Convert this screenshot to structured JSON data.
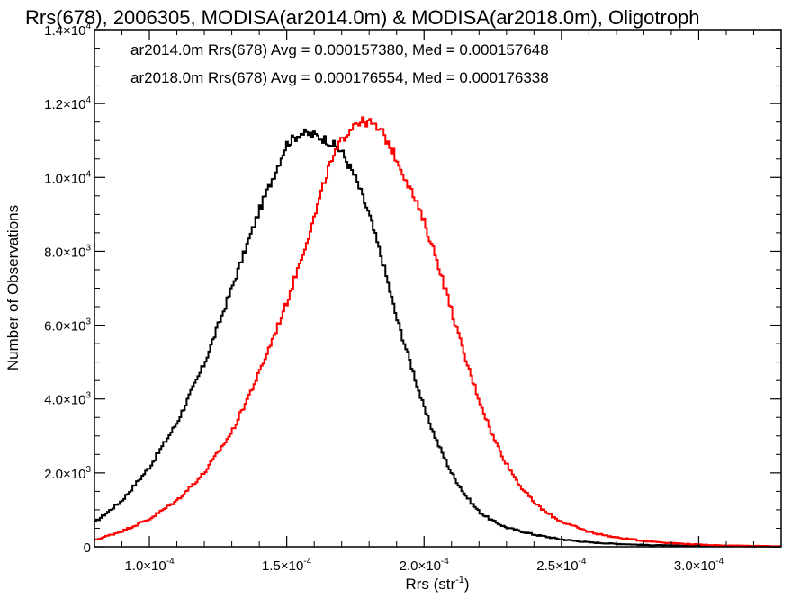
{
  "chart_data": {
    "type": "line",
    "title": "Rrs(678), 2006305, MODISA(ar2014.0m) & MODISA(ar2018.0m), Oligotroph",
    "xlabel_main": "Rrs (str",
    "xlabel_sup": "-1",
    "xlabel_end": ")",
    "ylabel": "Number of Observations",
    "xlim": [
      8e-05,
      0.00033
    ],
    "ylim": [
      0,
      14000
    ],
    "xticks": [
      {
        "value": 0.0001,
        "mant": "1.0×10",
        "exp": "-4"
      },
      {
        "value": 0.00015,
        "mant": "1.5×10",
        "exp": "-4"
      },
      {
        "value": 0.0002,
        "mant": "2.0×10",
        "exp": "-4"
      },
      {
        "value": 0.00025,
        "mant": "2.5×10",
        "exp": "-4"
      },
      {
        "value": 0.0003,
        "mant": "3.0×10",
        "exp": "-4"
      }
    ],
    "yticks": [
      {
        "value": 0,
        "mant": "0",
        "exp": ""
      },
      {
        "value": 2000,
        "mant": "2.0×10",
        "exp": "3"
      },
      {
        "value": 4000,
        "mant": "4.0×10",
        "exp": "3"
      },
      {
        "value": 6000,
        "mant": "6.0×10",
        "exp": "3"
      },
      {
        "value": 8000,
        "mant": "8.0×10",
        "exp": "3"
      },
      {
        "value": 10000,
        "mant": "1.0×10",
        "exp": "4"
      },
      {
        "value": 12000,
        "mant": "1.2×10",
        "exp": "4"
      },
      {
        "value": 14000,
        "mant": "1.4×10",
        "exp": "4"
      }
    ],
    "series": [
      {
        "label": "ar2014.0m Rrs(678) Avg = 0.000157380, Med = 0.000157648",
        "color": "#000000",
        "points": [
          [
            8e-05,
            650
          ],
          [
            9e-05,
            1250
          ],
          [
            0.0001,
            2150
          ],
          [
            0.00011,
            3350
          ],
          [
            0.00012,
            4950
          ],
          [
            0.00013,
            7000
          ],
          [
            0.00014,
            9100
          ],
          [
            0.000145,
            10000
          ],
          [
            0.00015,
            10900
          ],
          [
            0.000155,
            11200
          ],
          [
            0.00016,
            11150
          ],
          [
            0.000165,
            11000
          ],
          [
            0.00017,
            10700
          ],
          [
            0.000175,
            10000
          ],
          [
            0.00018,
            9000
          ],
          [
            0.000185,
            7700
          ],
          [
            0.00019,
            6200
          ],
          [
            0.000195,
            5000
          ],
          [
            0.0002,
            3750
          ],
          [
            0.000205,
            2800
          ],
          [
            0.00021,
            2000
          ],
          [
            0.000215,
            1400
          ],
          [
            0.00022,
            950
          ],
          [
            0.000225,
            700
          ],
          [
            0.00023,
            520
          ],
          [
            0.00024,
            330
          ],
          [
            0.00025,
            200
          ],
          [
            0.00026,
            120
          ],
          [
            0.00027,
            80
          ],
          [
            0.00028,
            50
          ],
          [
            0.0003,
            20
          ],
          [
            0.00033,
            5
          ]
        ]
      },
      {
        "label": "ar2018.0m Rrs(678) Avg = 0.000176554, Med = 0.000176338",
        "color": "#ff0000",
        "points": [
          [
            8e-05,
            180
          ],
          [
            9e-05,
            420
          ],
          [
            0.0001,
            750
          ],
          [
            0.00011,
            1250
          ],
          [
            0.00012,
            2000
          ],
          [
            0.00013,
            3100
          ],
          [
            0.00014,
            4700
          ],
          [
            0.00015,
            6600
          ],
          [
            0.00016,
            8900
          ],
          [
            0.000165,
            10200
          ],
          [
            0.00017,
            11000
          ],
          [
            0.000175,
            11500
          ],
          [
            0.00018,
            11500
          ],
          [
            0.000185,
            11200
          ],
          [
            0.00019,
            10500
          ],
          [
            0.000195,
            9700
          ],
          [
            0.0002,
            8800
          ],
          [
            0.000205,
            7700
          ],
          [
            0.00021,
            6400
          ],
          [
            0.000215,
            5100
          ],
          [
            0.00022,
            4000
          ],
          [
            0.000225,
            3000
          ],
          [
            0.00023,
            2250
          ],
          [
            0.000235,
            1650
          ],
          [
            0.00024,
            1200
          ],
          [
            0.000245,
            900
          ],
          [
            0.00025,
            680
          ],
          [
            0.00026,
            400
          ],
          [
            0.00027,
            250
          ],
          [
            0.00028,
            160
          ],
          [
            0.00029,
            100
          ],
          [
            0.0003,
            60
          ],
          [
            0.00031,
            35
          ],
          [
            0.00033,
            15
          ]
        ]
      }
    ],
    "grid": false,
    "legend_placement": "top-left"
  }
}
